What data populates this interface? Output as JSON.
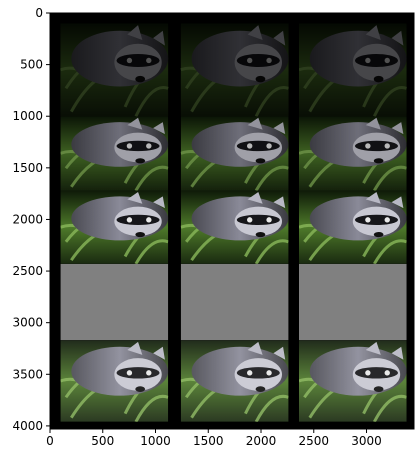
{
  "chart_data": {
    "type": "image",
    "title": "",
    "xlabel": "",
    "ylabel": "",
    "xlim": [
      0,
      3450
    ],
    "ylim": [
      4030,
      0
    ],
    "xticks": [
      0,
      500,
      1000,
      1500,
      2000,
      2500,
      3000
    ],
    "yticks": [
      0,
      500,
      1000,
      1500,
      2000,
      2500,
      3000,
      3500,
      4000
    ],
    "frame_color": "#000000",
    "grid": [
      {
        "col": 0,
        "x0": 100,
        "x1": 1120,
        "tiles": [
          {
            "y0": 100,
            "y1": 1000,
            "kind": "photo",
            "brightness": 0.35
          },
          {
            "y0": 1000,
            "y1": 1720,
            "kind": "photo",
            "brightness": 0.8
          },
          {
            "y0": 1720,
            "y1": 2430,
            "kind": "photo",
            "brightness": 1.0
          },
          {
            "y0": 2430,
            "y1": 3170,
            "kind": "gray",
            "color": "#808080"
          },
          {
            "y0": 3170,
            "y1": 3960,
            "kind": "photo",
            "brightness": 1.05
          }
        ]
      },
      {
        "col": 1,
        "x0": 1240,
        "x1": 2260,
        "tiles": [
          {
            "y0": 100,
            "y1": 1000,
            "kind": "photo",
            "brightness": 0.35
          },
          {
            "y0": 1000,
            "y1": 1720,
            "kind": "photo",
            "brightness": 0.8
          },
          {
            "y0": 1720,
            "y1": 2430,
            "kind": "photo",
            "brightness": 1.0
          },
          {
            "y0": 2430,
            "y1": 3170,
            "kind": "gray",
            "color": "#808080"
          },
          {
            "y0": 3170,
            "y1": 3960,
            "kind": "photo",
            "brightness": 1.05
          }
        ]
      },
      {
        "col": 2,
        "x0": 2360,
        "x1": 3380,
        "tiles": [
          {
            "y0": 100,
            "y1": 1000,
            "kind": "photo",
            "brightness": 0.35
          },
          {
            "y0": 1000,
            "y1": 1720,
            "kind": "photo",
            "brightness": 0.8
          },
          {
            "y0": 1720,
            "y1": 2430,
            "kind": "photo",
            "brightness": 1.0
          },
          {
            "y0": 2430,
            "y1": 3170,
            "kind": "gray",
            "color": "#808080"
          },
          {
            "y0": 3170,
            "y1": 3960,
            "kind": "photo",
            "brightness": 1.05
          }
        ]
      }
    ]
  }
}
